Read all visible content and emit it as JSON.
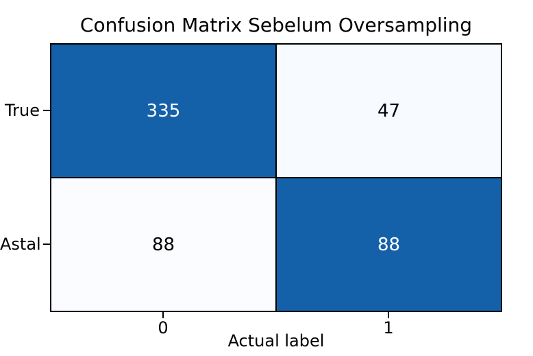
{
  "chart_data": {
    "type": "heatmap",
    "title": "Confusion Matrix Sebelum Oversampling",
    "xlabel": "Actual label",
    "x_tick_labels": [
      "0",
      "1"
    ],
    "y_tick_labels": [
      "True",
      "Astal"
    ],
    "matrix": [
      [
        335,
        47
      ],
      [
        88,
        88
      ]
    ],
    "cell_colors": [
      [
        "#1561a9",
        "#f7fbff"
      ],
      [
        "#fafcff",
        "#1561a9"
      ]
    ],
    "cell_text_colors": [
      [
        "#ffffff",
        "#000000"
      ],
      [
        "#000000",
        "#ffffff"
      ]
    ],
    "colors": {
      "axis_border": "#000000",
      "background": "#ffffff",
      "dark_cell": "#1561a9",
      "light_cell": "#f7fbff"
    },
    "legend": "none",
    "grid": "off"
  }
}
